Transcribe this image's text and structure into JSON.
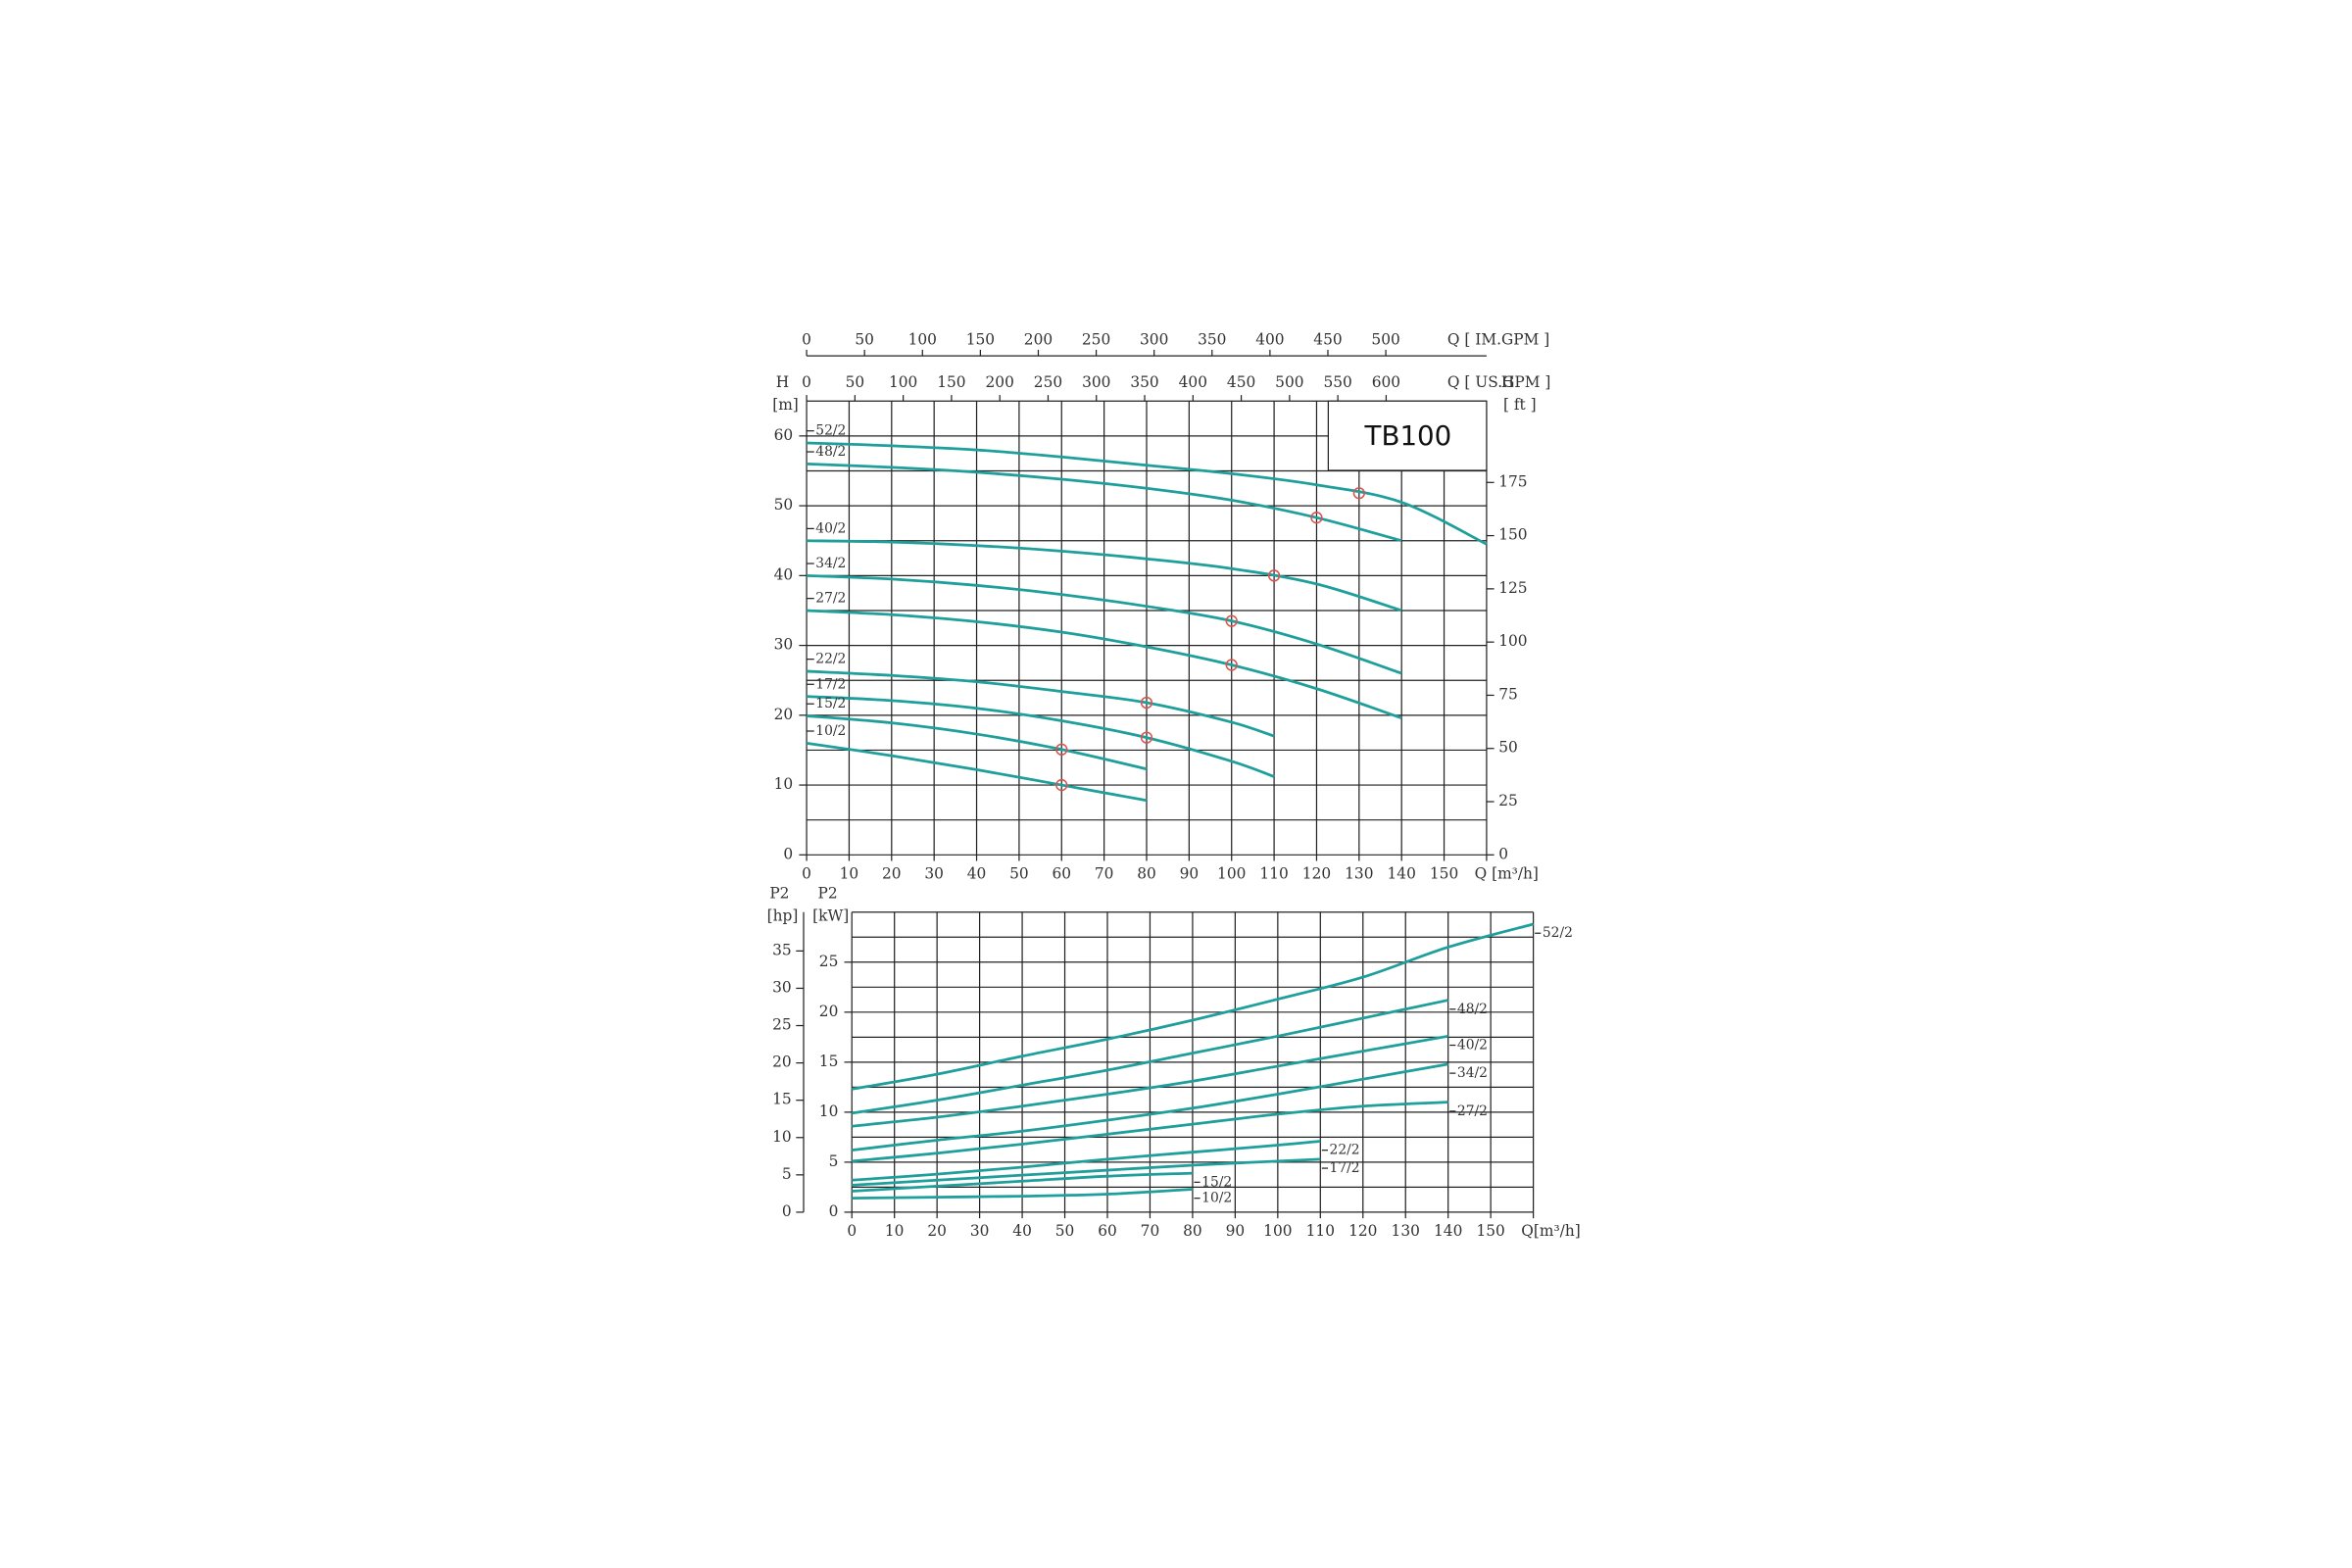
{
  "chart_data": [
    {
      "type": "line",
      "title": "TB100",
      "xlabel": "Q [m³/h]",
      "ylabel": "H",
      "yunit": "[m]",
      "y2label": "H",
      "y2unit": "[ ft ]",
      "y2_position": "right",
      "label_position": "start",
      "color": "#1f9f9b",
      "bep_color": "#d9534f",
      "xlim": [
        0,
        160
      ],
      "xticks": [
        0,
        10,
        20,
        30,
        40,
        50,
        60,
        70,
        80,
        90,
        100,
        110,
        120,
        130,
        140,
        150
      ],
      "ylim": [
        0,
        65
      ],
      "yticks": [
        0,
        10,
        20,
        30,
        40,
        50,
        60
      ],
      "ygrid": [
        0,
        5,
        10,
        15,
        20,
        25,
        30,
        35,
        40,
        45,
        50,
        55,
        60,
        65
      ],
      "y2lim": [
        0,
        213.25
      ],
      "y2ticks": [
        0,
        25,
        50,
        75,
        100,
        125,
        150,
        175
      ],
      "top_axes": [
        {
          "label": "Q [ IM.GPM ]",
          "xlim": [
            0,
            587
          ],
          "xticks": [
            0,
            50,
            100,
            150,
            200,
            250,
            300,
            350,
            400,
            450,
            500
          ]
        },
        {
          "label": "Q [ US.GPM ]",
          "xlim": [
            0,
            704
          ],
          "xticks": [
            0,
            50,
            100,
            150,
            200,
            250,
            300,
            350,
            400,
            450,
            500,
            550,
            600
          ]
        }
      ],
      "series": [
        {
          "name": "52/2",
          "x": [
            0,
            20,
            40,
            60,
            80,
            100,
            120,
            140,
            160
          ],
          "values": [
            59,
            58.6,
            58,
            57,
            55.8,
            54.6,
            53,
            50.5,
            44.5
          ],
          "bep": {
            "x": 130,
            "y": 51.8
          }
        },
        {
          "name": "48/2",
          "x": [
            0,
            20,
            40,
            60,
            80,
            100,
            120,
            140
          ],
          "values": [
            56,
            55.5,
            54.8,
            53.8,
            52.5,
            50.8,
            48.3,
            45
          ],
          "bep": {
            "x": 120,
            "y": 48.3
          }
        },
        {
          "name": "40/2",
          "x": [
            0,
            20,
            40,
            60,
            80,
            100,
            120,
            140
          ],
          "values": [
            45,
            44.8,
            44.3,
            43.5,
            42.4,
            41,
            38.8,
            35
          ],
          "bep": {
            "x": 110,
            "y": 40
          }
        },
        {
          "name": "34/2",
          "x": [
            0,
            20,
            40,
            60,
            80,
            100,
            120,
            140
          ],
          "values": [
            40,
            39.5,
            38.6,
            37.3,
            35.6,
            33.5,
            30.2,
            26
          ],
          "bep": {
            "x": 100,
            "y": 33.5
          }
        },
        {
          "name": "27/2",
          "x": [
            0,
            20,
            40,
            60,
            80,
            100,
            120,
            140
          ],
          "values": [
            35,
            34.4,
            33.4,
            31.9,
            29.8,
            27.2,
            23.8,
            19.6
          ],
          "bep": {
            "x": 100,
            "y": 27.2
          }
        },
        {
          "name": "22/2",
          "x": [
            0,
            20,
            40,
            60,
            80,
            100,
            110
          ],
          "values": [
            26.3,
            25.7,
            24.8,
            23.4,
            21.8,
            19,
            17
          ],
          "bep": {
            "x": 80,
            "y": 21.8
          }
        },
        {
          "name": "17/2",
          "x": [
            0,
            20,
            40,
            60,
            80,
            100,
            110
          ],
          "values": [
            22.7,
            22.1,
            21,
            19.2,
            16.8,
            13.4,
            11.2
          ],
          "bep": {
            "x": 80,
            "y": 16.8
          }
        },
        {
          "name": "15/2",
          "x": [
            0,
            20,
            40,
            60,
            80
          ],
          "values": [
            19.9,
            18.9,
            17.3,
            15.1,
            12.3
          ],
          "bep": {
            "x": 60,
            "y": 15.1
          }
        },
        {
          "name": "10/2",
          "x": [
            0,
            20,
            40,
            60,
            80
          ],
          "values": [
            16,
            14.2,
            12.2,
            10,
            7.8
          ],
          "bep": {
            "x": 60,
            "y": 10
          }
        }
      ]
    },
    {
      "type": "line",
      "xlabel": "Q[m³/h]",
      "ylabel": "P2",
      "yunit": "[kW]",
      "y2label": "P2",
      "y2unit": "[hp]",
      "y2_position": "left",
      "label_position": "end",
      "color": "#1f9f9b",
      "xlim": [
        0,
        160
      ],
      "xticks": [
        0,
        10,
        20,
        30,
        40,
        50,
        60,
        70,
        80,
        90,
        100,
        110,
        120,
        130,
        140,
        150
      ],
      "ylim": [
        0,
        30
      ],
      "yticks": [
        0,
        5,
        10,
        15,
        20,
        25
      ],
      "ygrid": [
        0,
        2.5,
        5,
        7.5,
        10,
        12.5,
        15,
        17.5,
        20,
        22.5,
        25,
        27.5,
        30
      ],
      "y2lim": [
        0,
        40.2
      ],
      "y2ticks": [
        0,
        5,
        10,
        15,
        20,
        25,
        30,
        35
      ],
      "series": [
        {
          "name": "52/2",
          "x": [
            0,
            20,
            40,
            60,
            80,
            100,
            120,
            140,
            160
          ],
          "values": [
            12.3,
            13.8,
            15.6,
            17.3,
            19.2,
            21.3,
            23.5,
            26.5,
            28.8
          ]
        },
        {
          "name": "48/2",
          "x": [
            0,
            20,
            40,
            60,
            80,
            100,
            120,
            140
          ],
          "values": [
            9.9,
            11.2,
            12.7,
            14.2,
            15.9,
            17.6,
            19.4,
            21.2
          ]
        },
        {
          "name": "40/2",
          "x": [
            0,
            20,
            40,
            60,
            80,
            100,
            120,
            140
          ],
          "values": [
            8.6,
            9.5,
            10.6,
            11.8,
            13.1,
            14.6,
            16.1,
            17.6
          ]
        },
        {
          "name": "34/2",
          "x": [
            0,
            20,
            40,
            60,
            80,
            100,
            120,
            140
          ],
          "values": [
            6.2,
            7.2,
            8.1,
            9.2,
            10.4,
            11.8,
            13.3,
            14.8
          ]
        },
        {
          "name": "27/2",
          "x": [
            0,
            20,
            40,
            60,
            80,
            100,
            120,
            140
          ],
          "values": [
            5.1,
            5.9,
            6.8,
            7.8,
            8.8,
            9.8,
            10.6,
            11
          ]
        },
        {
          "name": "22/2",
          "x": [
            0,
            20,
            40,
            60,
            80,
            100,
            110
          ],
          "values": [
            3.2,
            3.8,
            4.5,
            5.3,
            6,
            6.7,
            7.1
          ]
        },
        {
          "name": "17/2",
          "x": [
            0,
            20,
            40,
            60,
            80,
            100,
            110
          ],
          "values": [
            2.7,
            3.2,
            3.7,
            4.2,
            4.7,
            5.1,
            5.3
          ]
        },
        {
          "name": "15/2",
          "x": [
            0,
            20,
            40,
            60,
            80
          ],
          "values": [
            2.1,
            2.6,
            3.1,
            3.6,
            3.9
          ]
        },
        {
          "name": "10/2",
          "x": [
            0,
            20,
            40,
            60,
            80
          ],
          "values": [
            1.4,
            1.5,
            1.6,
            1.8,
            2.3
          ]
        }
      ]
    }
  ]
}
